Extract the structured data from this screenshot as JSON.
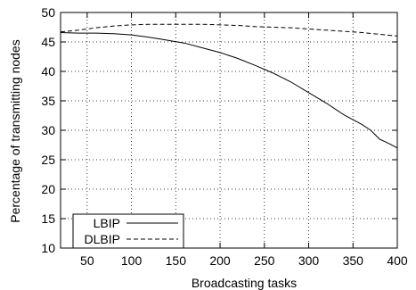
{
  "chart_data": {
    "type": "line",
    "xlabel": "Broadcasting tasks",
    "ylabel": "Percentage of transmitting nodes",
    "xlim": [
      20,
      400
    ],
    "ylim": [
      10,
      50
    ],
    "xticks": [
      50,
      100,
      150,
      200,
      250,
      300,
      350,
      400
    ],
    "yticks": [
      10,
      15,
      20,
      25,
      30,
      35,
      40,
      45,
      50
    ],
    "grid": true,
    "grid_style": "dotted",
    "legend_position": "bottom-left",
    "series": [
      {
        "name": "LBIP",
        "style": "solid",
        "color": "#000000",
        "x": [
          20,
          40,
          60,
          80,
          100,
          120,
          140,
          160,
          180,
          200,
          220,
          240,
          260,
          280,
          300,
          320,
          340,
          360,
          370,
          380,
          390,
          400
        ],
        "y": [
          46.6,
          46.5,
          46.5,
          46.4,
          46.2,
          45.8,
          45.3,
          44.8,
          44.0,
          43.2,
          42.2,
          41.0,
          39.7,
          38.2,
          36.4,
          34.6,
          32.6,
          31.0,
          30.0,
          28.5,
          27.8,
          27.0
        ]
      },
      {
        "name": "DLBIP",
        "style": "dashed",
        "color": "#000000",
        "x": [
          20,
          40,
          60,
          80,
          100,
          120,
          140,
          160,
          180,
          200,
          220,
          240,
          260,
          280,
          300,
          320,
          340,
          360,
          380,
          400
        ],
        "y": [
          46.7,
          47.0,
          47.4,
          47.7,
          47.9,
          48.0,
          48.0,
          48.0,
          48.0,
          47.9,
          47.8,
          47.6,
          47.5,
          47.4,
          47.2,
          47.0,
          46.8,
          46.6,
          46.3,
          46.0
        ]
      }
    ]
  }
}
